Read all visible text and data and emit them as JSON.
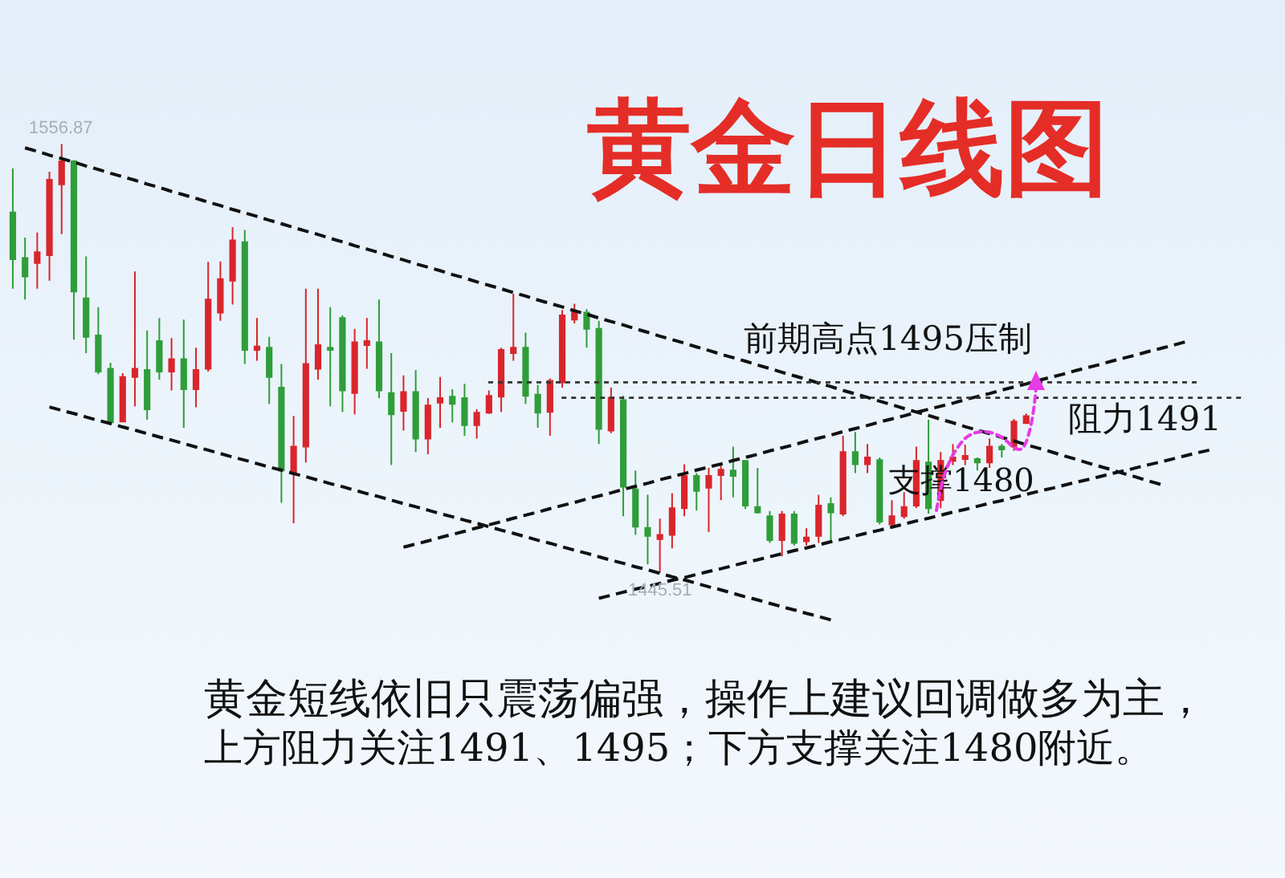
{
  "chart_data": {
    "type": "candlestick",
    "title": "黄金日线图",
    "tick_labels": false,
    "categories": [
      null,
      null,
      null,
      null,
      null,
      null,
      null,
      null,
      null,
      null,
      null,
      null,
      null,
      null,
      null,
      null,
      null,
      null,
      null,
      null,
      null,
      null,
      null,
      null,
      null,
      null,
      null,
      null,
      null,
      null,
      null,
      null,
      null,
      null,
      null,
      null,
      null,
      null,
      null,
      null,
      null,
      null,
      null,
      null,
      null,
      null,
      null,
      null,
      null,
      null,
      null,
      null,
      null,
      null,
      null,
      null,
      null,
      null,
      null,
      null,
      null,
      null,
      null,
      null,
      null,
      null,
      null,
      null,
      null,
      null,
      null,
      null,
      null,
      null,
      null,
      null,
      null,
      null,
      null,
      null,
      null,
      null,
      null,
      null,
      null,
      null,
      null,
      null,
      null,
      null,
      null,
      null,
      null,
      null,
      null,
      null,
      null,
      null,
      null
    ],
    "ohlc": [
      [
        1539.1,
        1550.6,
        1519.3,
        1527.0
      ],
      [
        1527.3,
        1532.6,
        1516.5,
        1522.5
      ],
      [
        1526.0,
        1533.9,
        1519.3,
        1528.8
      ],
      [
        1528.0,
        1549.7,
        1521.4,
        1547.6
      ],
      [
        1546.4,
        1556.87,
        1533.5,
        1552.4
      ],
      [
        1552.4,
        1552.7,
        1506.1,
        1518.6
      ],
      [
        1516.8,
        1527.7,
        1502.6,
        1506.8
      ],
      [
        1507.2,
        1514.5,
        1497.1,
        1497.8
      ],
      [
        1498.5,
        1500.1,
        1483.9,
        1484.6
      ],
      [
        1484.8,
        1497.4,
        1484.6,
        1496.4
      ],
      [
        1496.4,
        1523.8,
        1488.8,
        1498.5
      ],
      [
        1498.2,
        1508.5,
        1485.3,
        1488.0
      ],
      [
        1505.7,
        1511.7,
        1495.7,
        1497.8
      ],
      [
        1497.8,
        1506.5,
        1492.9,
        1501.0
      ],
      [
        1501.0,
        1511.3,
        1483.2,
        1493.2
      ],
      [
        1493.2,
        1504.0,
        1488.5,
        1498.2
      ],
      [
        1498.5,
        1526.3,
        1497.8,
        1516.5
      ],
      [
        1513.1,
        1526.4,
        1511.0,
        1521.8
      ],
      [
        1521.4,
        1535.3,
        1515.2,
        1531.9
      ],
      [
        1531.4,
        1534.6,
        1499.8,
        1503.4
      ],
      [
        1503.4,
        1511.7,
        1500.6,
        1504.3
      ],
      [
        1504.0,
        1506.8,
        1489.4,
        1496.4
      ],
      [
        1493.6,
        1499.8,
        1463.7,
        1472.1
      ],
      [
        1471.4,
        1486.3,
        1458.4,
        1478.3
      ],
      [
        1478.3,
        1519.3,
        1474.2,
        1499.8
      ],
      [
        1498.5,
        1519.3,
        1495.7,
        1504.7
      ],
      [
        1504.0,
        1514.5,
        1488.8,
        1503.4
      ],
      [
        1511.7,
        1512.4,
        1487.3,
        1492.9
      ],
      [
        1492.2,
        1508.9,
        1486.7,
        1505.4
      ],
      [
        1504.7,
        1511.7,
        1498.5,
        1505.7
      ],
      [
        1505.4,
        1516.5,
        1490.9,
        1492.9
      ],
      [
        1492.2,
        1502.6,
        1473.5,
        1486.7
      ],
      [
        1487.6,
        1496.8,
        1482.5,
        1492.5
      ],
      [
        1492.5,
        1498.2,
        1476.9,
        1480.4
      ],
      [
        1480.4,
        1490.9,
        1476.3,
        1489.0
      ],
      [
        1489.7,
        1496.4,
        1483.2,
        1490.9
      ],
      [
        1491.3,
        1493.2,
        1484.6,
        1489.4
      ],
      [
        1490.9,
        1494.6,
        1481.1,
        1483.9
      ],
      [
        1483.9,
        1488.0,
        1480.4,
        1487.1
      ],
      [
        1487.1,
        1492.9,
        1486.8,
        1491.5
      ],
      [
        1491.3,
        1504.0,
        1487.3,
        1503.4
      ],
      [
        1502.6,
        1518.0,
        1500.6,
        1504.0
      ],
      [
        1504.0,
        1507.9,
        1489.4,
        1491.5
      ],
      [
        1491.8,
        1494.3,
        1483.2,
        1487.1
      ],
      [
        1487.3,
        1496.0,
        1481.1,
        1495.4
      ],
      [
        1495.0,
        1513.8,
        1493.6,
        1512.4
      ],
      [
        1511.3,
        1515.4,
        1510.3,
        1513.5
      ],
      [
        1513.1,
        1514.0,
        1504.0,
        1508.9
      ],
      [
        1508.9,
        1511.0,
        1479.0,
        1482.9
      ],
      [
        1482.5,
        1493.6,
        1481.8,
        1491.0
      ],
      [
        1490.4,
        1491.5,
        1460.2,
        1467.9
      ],
      [
        1467.2,
        1472.1,
        1455.4,
        1457.5
      ],
      [
        1457.2,
        1465.8,
        1447.7,
        1455.1
      ],
      [
        1454.3,
        1459.6,
        1445.51,
        1455.4
      ],
      [
        1455.4,
        1466.2,
        1451.9,
        1462.3
      ],
      [
        1462.3,
        1473.7,
        1460.2,
        1470.7
      ],
      [
        1470.7,
        1471.4,
        1461.7,
        1466.8
      ],
      [
        1467.6,
        1472.8,
        1456.1,
        1470.7
      ],
      [
        1470.9,
        1473.5,
        1464.4,
        1472.3
      ],
      [
        1472.1,
        1478.3,
        1465.1,
        1470.7
      ],
      [
        1474.6,
        1474.8,
        1462.1,
        1463.0
      ],
      [
        1462.6,
        1472.8,
        1460.9,
        1461.2
      ],
      [
        1460.2,
        1461.6,
        1453.3,
        1454.0
      ],
      [
        1454.0,
        1461.6,
        1449.8,
        1460.7
      ],
      [
        1460.7,
        1461.6,
        1452.6,
        1453.3
      ],
      [
        1453.7,
        1457.1,
        1452.6,
        1454.7
      ],
      [
        1455.1,
        1465.8,
        1453.3,
        1463.0
      ],
      [
        1463.4,
        1465.1,
        1454.0,
        1461.2
      ],
      [
        1460.9,
        1481.1,
        1460.2,
        1476.9
      ],
      [
        1476.9,
        1482.1,
        1471.4,
        1473.7
      ],
      [
        1473.7,
        1479.0,
        1471.4,
        1475.5
      ],
      [
        1474.8,
        1475.5,
        1458.1,
        1458.8
      ],
      [
        1458.1,
        1464.4,
        1457.5,
        1460.2
      ],
      [
        1460.2,
        1466.5,
        1459.6,
        1462.6
      ],
      [
        1463.0,
        1478.3,
        1462.3,
        1474.6
      ],
      [
        1474.2,
        1485.3,
        1460.9,
        1462.3
      ],
      [
        1464.4,
        1476.9,
        1462.3,
        1474.6
      ],
      [
        1474.6,
        1479.0,
        1473.5,
        1475.5
      ],
      [
        1475.1,
        1478.8,
        1473.5,
        1475.9
      ],
      [
        1475.1,
        1475.5,
        1472.1,
        1474.2
      ],
      [
        1474.2,
        1480.4,
        1472.8,
        1478.3
      ],
      [
        1478.3,
        1479.0,
        1475.5,
        1477.6
      ],
      [
        1478.3,
        1485.5,
        1477.2,
        1484.8
      ],
      [
        1484.4,
        1486.9,
        1484.2,
        1486.2
      ],
      null,
      null,
      null,
      null,
      null,
      null,
      null,
      null,
      null,
      null,
      null,
      null,
      null,
      null,
      null
    ],
    "colors": [
      "#2f9e3a",
      "#2f9e3a",
      "#d9262c",
      "#d9262c",
      "#d9262c",
      "#2f9e3a",
      "#2f9e3a",
      "#2f9e3a",
      "#2f9e3a",
      "#d9262c",
      "#d9262c",
      "#2f9e3a",
      "#2f9e3a",
      "#d9262c",
      "#2f9e3a",
      "#d9262c",
      "#d9262c",
      "#d9262c",
      "#d9262c",
      "#2f9e3a",
      "#d9262c",
      "#2f9e3a",
      "#2f9e3a",
      "#d9262c",
      "#d9262c",
      "#d9262c",
      "#2f9e3a",
      "#2f9e3a",
      "#d9262c",
      "#d9262c",
      "#2f9e3a",
      "#2f9e3a",
      "#d9262c",
      "#2f9e3a",
      "#d9262c",
      "#d9262c",
      "#2f9e3a",
      "#2f9e3a",
      "#d9262c",
      "#d9262c",
      "#d9262c",
      "#d9262c",
      "#2f9e3a",
      "#2f9e3a",
      "#d9262c",
      "#d9262c",
      "#d9262c",
      "#2f9e3a",
      "#2f9e3a",
      "#d9262c",
      "#2f9e3a",
      "#2f9e3a",
      "#2f9e3a",
      "#d9262c",
      "#d9262c",
      "#d9262c",
      "#2f9e3a",
      "#d9262c",
      "#d9262c",
      "#2f9e3a",
      "#2f9e3a",
      "#2f9e3a",
      "#2f9e3a",
      "#d9262c",
      "#2f9e3a",
      "#d9262c",
      "#d9262c",
      "#2f9e3a",
      "#d9262c",
      "#2f9e3a",
      "#d9262c",
      "#2f9e3a",
      "#d9262c",
      "#d9262c",
      "#d9262c",
      "#2f9e3a",
      "#d9262c",
      "#d9262c",
      "#d9262c",
      "#2f9e3a",
      "#d9262c",
      "#2f9e3a",
      "#d9262c",
      "#d9262c",
      null,
      null,
      null,
      null,
      null,
      null,
      null,
      null,
      null,
      null,
      null,
      null,
      null,
      null,
      null
    ],
    "series": [
      {
        "type": "line",
        "color": "#111111",
        "line_style": "dashed",
        "values": [
          null,
          1555.9,
          1555.0,
          1554.0,
          1553.1,
          1552.2,
          1551.2,
          1550.3,
          1549.3,
          1548.4,
          1547.5,
          1546.5,
          1545.6,
          1544.6,
          1543.7,
          1542.8,
          1541.8,
          1540.9,
          1539.9,
          1539.0,
          1538.1,
          1537.1,
          1536.2,
          1535.2,
          1534.3,
          1533.4,
          1532.4,
          1531.5,
          1530.5,
          1529.6,
          1528.7,
          1527.7,
          1526.8,
          1525.8,
          1524.9,
          1524.0,
          1523.0,
          1522.1,
          1521.1,
          1520.2,
          1519.3,
          1518.3,
          1517.4,
          1516.4,
          1515.5,
          1514.6,
          1513.6,
          1512.7,
          1511.7,
          1510.8,
          1509.9,
          1508.9,
          1508.0,
          1507.0,
          1506.1,
          1505.2,
          1504.2,
          1503.3,
          1502.3,
          1501.4,
          1500.5,
          1499.5,
          1498.6,
          1497.6,
          1496.7,
          1495.8,
          1494.8,
          1493.9,
          1492.9,
          1492.0,
          1491.1,
          1490.1,
          1489.2,
          1488.2,
          1487.3,
          1486.4,
          1485.4,
          1484.5,
          1483.5,
          1482.6,
          1481.7,
          1480.7,
          1479.8,
          1478.8,
          1477.9,
          1477.0,
          1476.0,
          1475.1,
          1474.1,
          1473.2,
          1472.3,
          1471.3,
          1470.4,
          1469.4,
          1468.5,
          null,
          null,
          null,
          null
        ]
      },
      {
        "type": "line",
        "color": "#111111",
        "line_style": "dashed",
        "values": [
          null,
          null,
          null,
          1488.6,
          1487.7,
          1486.9,
          1486.0,
          1485.1,
          1484.3,
          1483.4,
          1482.6,
          1481.7,
          1480.8,
          1480.0,
          1479.1,
          1478.2,
          1477.4,
          1476.5,
          1475.6,
          1474.8,
          1473.9,
          1473.0,
          1472.2,
          1471.3,
          1470.5,
          1469.6,
          1468.7,
          1467.9,
          1467.0,
          1466.1,
          1465.3,
          1464.4,
          1463.5,
          1462.7,
          1461.8,
          1460.9,
          1460.1,
          1459.2,
          1458.4,
          1457.5,
          1456.6,
          1455.8,
          1454.9,
          1454.0,
          1453.2,
          1452.3,
          1451.4,
          1450.6,
          1449.7,
          1448.8,
          1448.0,
          1447.1,
          1446.3,
          1445.4,
          1444.5,
          1443.7,
          1442.8,
          1441.9,
          1441.1,
          1440.2,
          1439.3,
          1438.5,
          1437.6,
          1436.7,
          1435.9,
          1435.0,
          1434.2,
          1433.3,
          null,
          null,
          null,
          null,
          null,
          null,
          null,
          null,
          null,
          null,
          null,
          null,
          null,
          null,
          null,
          null,
          null,
          null,
          null,
          null,
          null,
          null,
          null,
          null,
          null,
          null,
          null,
          null,
          null,
          null,
          null
        ]
      },
      {
        "type": "line",
        "color": "#111111",
        "line_style": "dashed",
        "values": [
          null,
          null,
          null,
          null,
          null,
          null,
          null,
          null,
          null,
          null,
          null,
          null,
          null,
          null,
          null,
          null,
          null,
          null,
          null,
          null,
          null,
          null,
          null,
          null,
          null,
          null,
          null,
          null,
          null,
          null,
          null,
          null,
          1452.2,
          1453.0,
          1453.8,
          1454.7,
          1455.5,
          1456.3,
          1457.2,
          1458.0,
          1458.8,
          1459.7,
          1460.5,
          1461.3,
          1462.2,
          1463.0,
          1463.8,
          1464.7,
          1465.5,
          1466.3,
          1467.2,
          1468.0,
          1468.8,
          1469.7,
          1470.5,
          1471.3,
          1472.2,
          1473.0,
          1473.8,
          1474.7,
          1475.5,
          1476.3,
          1477.2,
          1478.0,
          1478.8,
          1479.7,
          1480.5,
          1481.3,
          1482.2,
          1483.0,
          1483.8,
          1484.7,
          1485.5,
          1486.3,
          1487.2,
          1488.0,
          1488.8,
          1489.6,
          1490.5,
          1491.3,
          1492.1,
          1493.0,
          1493.8,
          1494.6,
          1495.5,
          1496.3,
          1497.1,
          1498.0,
          1498.8,
          1499.6,
          1500.5,
          1501.3,
          1502.1,
          1503.0,
          1503.8,
          1504.6,
          1505.5,
          null,
          null
        ]
      },
      {
        "type": "line",
        "color": "#111111",
        "line_style": "dashed",
        "values": [
          null,
          null,
          null,
          null,
          null,
          null,
          null,
          null,
          null,
          null,
          null,
          null,
          null,
          null,
          null,
          null,
          null,
          null,
          null,
          null,
          null,
          null,
          null,
          null,
          null,
          null,
          null,
          null,
          null,
          null,
          null,
          null,
          null,
          null,
          null,
          null,
          null,
          null,
          null,
          null,
          null,
          null,
          null,
          null,
          null,
          null,
          null,
          null,
          1438.9,
          1439.7,
          1440.5,
          1441.3,
          1442.0,
          1442.8,
          1443.6,
          1444.3,
          1445.1,
          1445.9,
          1446.6,
          1447.4,
          1448.2,
          1448.9,
          1449.7,
          1450.5,
          1451.3,
          1452.0,
          1452.8,
          1453.6,
          1454.3,
          1455.1,
          1455.9,
          1456.6,
          1457.4,
          1458.2,
          1459.0,
          1459.7,
          1460.5,
          1461.3,
          1462.0,
          1462.8,
          1463.6,
          1464.3,
          1465.1,
          1465.9,
          1466.7,
          1467.4,
          1468.2,
          1469.0,
          1469.7,
          1470.5,
          1471.3,
          1472.0,
          1472.8,
          1473.6,
          1474.3,
          1475.1,
          1475.9,
          1476.7,
          1477.4
        ]
      }
    ],
    "ref_lines": [
      {
        "axis": "y",
        "value": 1495,
        "label": "前期高点1495压制",
        "color": "#333333",
        "line_style": "dotted"
      },
      {
        "axis": "y",
        "value": 1491,
        "label": "阻力1491",
        "color": "#333333",
        "line_style": "dotted"
      }
    ],
    "annotations": [
      {
        "text": "1556.87",
        "y": 1556.87
      },
      {
        "text": "1445.51",
        "y": 1445.51
      },
      "支撑1480",
      "黄金短线依旧只震荡偏强，操作上建议回调做多为主，",
      "上方阻力关注1491、1495；下方支撑关注1480附近。"
    ]
  }
}
